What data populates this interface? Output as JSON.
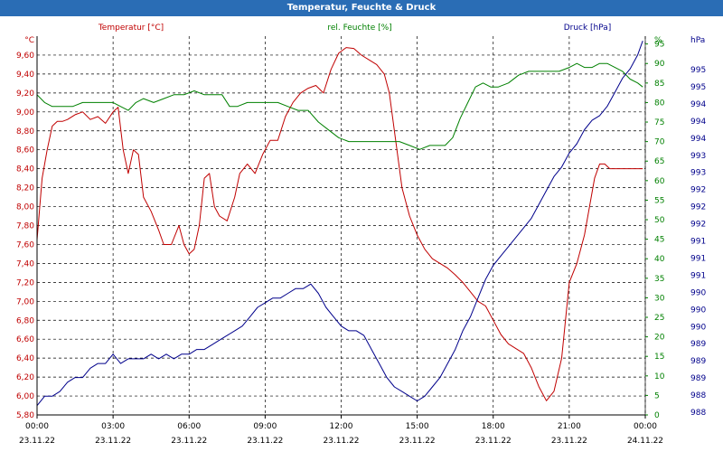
{
  "window": {
    "title": "Temperatur, Feuchte & Druck"
  },
  "chart_data": {
    "type": "line",
    "title": "Temperatur, Feuchte & Druck",
    "colors": {
      "temperature": "#c00000",
      "humidity": "#008000",
      "pressure": "#00008b",
      "grid": "#000000"
    },
    "grid": true,
    "axes": {
      "temperature": {
        "label": "Temperatur [°C]",
        "unit": "°C",
        "min": 5.8,
        "max": 9.8,
        "side": "left",
        "ticks": [
          "5,80",
          "6,00",
          "6,20",
          "6,40",
          "6,60",
          "6,80",
          "7,00",
          "7,20",
          "7,40",
          "7,60",
          "7,80",
          "8,00",
          "8,20",
          "8,40",
          "8,60",
          "8,80",
          "9,00",
          "9,20",
          "9,40",
          "9,60"
        ]
      },
      "humidity": {
        "label": "rel. Feuchte [%]",
        "unit": "%",
        "min": 0,
        "max": 97,
        "side": "right",
        "ticks": [
          "0",
          "5",
          "10",
          "15",
          "20",
          "25",
          "30",
          "35",
          "40",
          "45",
          "50",
          "55",
          "60",
          "65",
          "70",
          "75",
          "80",
          "85",
          "90",
          "95"
        ]
      },
      "pressure": {
        "label": "Druck [hPa]",
        "unit": "hPa",
        "min": 987.7,
        "max": 995.8,
        "side": "right",
        "ticks": [
          "988",
          "988",
          "989",
          "989",
          "989",
          "990",
          "990",
          "990",
          "991",
          "991",
          "991",
          "992",
          "992",
          "992",
          "993",
          "993",
          "994",
          "994",
          "994",
          "995",
          "995"
        ]
      }
    },
    "x_ticks": [
      {
        "time": "00:00",
        "date": "23.11.22"
      },
      {
        "time": "03:00",
        "date": "23.11.22"
      },
      {
        "time": "06:00",
        "date": "23.11.22"
      },
      {
        "time": "09:00",
        "date": "23.11.22"
      },
      {
        "time": "12:00",
        "date": "23.11.22"
      },
      {
        "time": "15:00",
        "date": "23.11.22"
      },
      {
        "time": "18:00",
        "date": "23.11.22"
      },
      {
        "time": "21:00",
        "date": "23.11.22"
      },
      {
        "time": "00:00",
        "date": "24.11.22"
      }
    ],
    "x_range_hours": [
      0,
      24
    ],
    "series": [
      {
        "name": "Temperatur [°C]",
        "axis": "temperature",
        "x": [
          0,
          0.2,
          0.4,
          0.6,
          0.8,
          1.0,
          1.2,
          1.5,
          1.8,
          2.1,
          2.4,
          2.7,
          3.0,
          3.2,
          3.4,
          3.6,
          3.8,
          4.0,
          4.2,
          4.5,
          4.8,
          5.0,
          5.3,
          5.6,
          5.8,
          6.0,
          6.2,
          6.4,
          6.6,
          6.8,
          7.0,
          7.2,
          7.5,
          7.8,
          8.0,
          8.3,
          8.6,
          8.9,
          9.2,
          9.5,
          9.8,
          10.1,
          10.4,
          10.7,
          11.0,
          11.3,
          11.6,
          11.9,
          12.2,
          12.5,
          12.8,
          13.1,
          13.4,
          13.7,
          13.9,
          14.1,
          14.4,
          14.7,
          15.0,
          15.3,
          15.6,
          15.9,
          16.2,
          16.5,
          16.8,
          17.1,
          17.4,
          17.7,
          18.0,
          18.3,
          18.6,
          18.9,
          19.2,
          19.5,
          19.8,
          20.1,
          20.4,
          20.7,
          21.0,
          21.3,
          21.6,
          21.8,
          22.0,
          22.2,
          22.4,
          22.6,
          22.8,
          23.1,
          23.4,
          23.7,
          23.9
        ],
        "values": [
          7.65,
          8.3,
          8.6,
          8.85,
          8.9,
          8.9,
          8.92,
          8.97,
          9.0,
          8.92,
          8.95,
          8.88,
          9.0,
          9.05,
          8.6,
          8.35,
          8.6,
          8.55,
          8.1,
          7.95,
          7.75,
          7.6,
          7.6,
          7.8,
          7.6,
          7.5,
          7.55,
          7.8,
          8.3,
          8.35,
          8.0,
          7.9,
          7.85,
          8.1,
          8.35,
          8.45,
          8.35,
          8.55,
          8.7,
          8.7,
          8.95,
          9.1,
          9.2,
          9.25,
          9.28,
          9.2,
          9.45,
          9.62,
          9.68,
          9.67,
          9.6,
          9.55,
          9.5,
          9.4,
          9.2,
          8.8,
          8.2,
          7.9,
          7.7,
          7.55,
          7.45,
          7.4,
          7.35,
          7.28,
          7.2,
          7.1,
          7.0,
          6.95,
          6.8,
          6.65,
          6.55,
          6.5,
          6.45,
          6.3,
          6.1,
          5.95,
          6.05,
          6.4,
          7.2,
          7.4,
          7.7,
          8.0,
          8.3,
          8.45,
          8.45,
          8.4,
          8.4,
          8.4,
          8.4,
          8.4,
          8.4
        ]
      },
      {
        "name": "rel. Feuchte [%]",
        "axis": "humidity",
        "x": [
          0,
          0.3,
          0.6,
          1.0,
          1.4,
          1.8,
          2.2,
          2.6,
          3.0,
          3.3,
          3.6,
          3.9,
          4.2,
          4.6,
          5.0,
          5.4,
          5.8,
          6.2,
          6.6,
          7.0,
          7.3,
          7.6,
          7.9,
          8.3,
          8.7,
          9.1,
          9.5,
          9.9,
          10.3,
          10.7,
          11.1,
          11.5,
          11.9,
          12.3,
          12.7,
          13.1,
          13.5,
          13.9,
          14.3,
          14.7,
          15.1,
          15.5,
          15.8,
          16.1,
          16.4,
          16.7,
          17.0,
          17.3,
          17.6,
          17.9,
          18.2,
          18.6,
          19.0,
          19.4,
          19.8,
          20.2,
          20.6,
          21.0,
          21.3,
          21.6,
          21.9,
          22.2,
          22.5,
          22.8,
          23.1,
          23.4,
          23.7,
          23.9
        ],
        "values": [
          82,
          80,
          79,
          79,
          79,
          80,
          80,
          80,
          80,
          79,
          78,
          80,
          81,
          80,
          81,
          82,
          82,
          83,
          82,
          82,
          82,
          79,
          79,
          80,
          80,
          80,
          80,
          79,
          78,
          78,
          75,
          73,
          71,
          70,
          70,
          70,
          70,
          70,
          70,
          69,
          68,
          69,
          69,
          69,
          71,
          76,
          80,
          84,
          85,
          84,
          84,
          85,
          87,
          88,
          88,
          88,
          88,
          89,
          90,
          89,
          89,
          90,
          90,
          89,
          88,
          86,
          85,
          84
        ]
      },
      {
        "name": "Druck [hPa]",
        "axis": "pressure",
        "x": [
          0,
          0.3,
          0.6,
          0.9,
          1.2,
          1.5,
          1.8,
          2.1,
          2.4,
          2.7,
          3.0,
          3.3,
          3.6,
          3.9,
          4.2,
          4.5,
          4.8,
          5.1,
          5.4,
          5.7,
          6.0,
          6.3,
          6.6,
          6.9,
          7.2,
          7.5,
          7.8,
          8.1,
          8.4,
          8.7,
          9.0,
          9.3,
          9.6,
          9.9,
          10.2,
          10.5,
          10.8,
          11.1,
          11.4,
          11.7,
          12.0,
          12.3,
          12.6,
          12.9,
          13.2,
          13.5,
          13.8,
          14.1,
          14.4,
          14.7,
          15.0,
          15.3,
          15.6,
          15.9,
          16.2,
          16.5,
          16.8,
          17.1,
          17.4,
          17.7,
          18.0,
          18.3,
          18.6,
          18.9,
          19.2,
          19.5,
          19.8,
          20.1,
          20.4,
          20.7,
          21.0,
          21.3,
          21.6,
          21.9,
          22.2,
          22.5,
          22.8,
          23.1,
          23.4,
          23.7,
          23.9
        ],
        "values": [
          987.9,
          988.1,
          988.1,
          988.2,
          988.4,
          988.5,
          988.5,
          988.7,
          988.8,
          988.8,
          989.0,
          988.8,
          988.9,
          988.9,
          988.9,
          989.0,
          988.9,
          989.0,
          988.9,
          989.0,
          989.0,
          989.1,
          989.1,
          989.2,
          989.3,
          989.4,
          989.5,
          989.6,
          989.8,
          990.0,
          990.1,
          990.2,
          990.2,
          990.3,
          990.4,
          990.4,
          990.5,
          990.3,
          990.0,
          989.8,
          989.6,
          989.5,
          989.5,
          989.4,
          989.1,
          988.8,
          988.5,
          988.3,
          988.2,
          988.1,
          988.0,
          988.1,
          988.3,
          988.5,
          988.8,
          989.1,
          989.5,
          989.8,
          990.2,
          990.6,
          990.9,
          991.1,
          991.3,
          991.5,
          991.7,
          991.9,
          992.2,
          992.5,
          992.8,
          993.0,
          993.3,
          993.5,
          993.8,
          994.0,
          994.1,
          994.3,
          994.6,
          994.9,
          995.1,
          995.4,
          995.7
        ]
      }
    ]
  }
}
